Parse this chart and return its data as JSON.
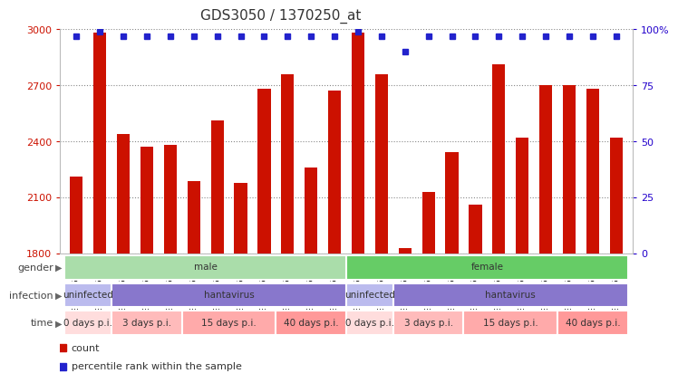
{
  "title": "GDS3050 / 1370250_at",
  "samples": [
    "GSM175452",
    "GSM175453",
    "GSM175454",
    "GSM175455",
    "GSM175456",
    "GSM175457",
    "GSM175458",
    "GSM175459",
    "GSM175460",
    "GSM175461",
    "GSM175462",
    "GSM175463",
    "GSM175440",
    "GSM175441",
    "GSM175442",
    "GSM175443",
    "GSM175444",
    "GSM175445",
    "GSM175446",
    "GSM175447",
    "GSM175448",
    "GSM175449",
    "GSM175450",
    "GSM175451"
  ],
  "counts": [
    2210,
    2980,
    2440,
    2370,
    2380,
    2185,
    2510,
    2175,
    2680,
    2760,
    2260,
    2670,
    2980,
    2760,
    1830,
    2130,
    2340,
    2060,
    2810,
    2420,
    2700,
    2700,
    2680,
    2420
  ],
  "percentile_ranks": [
    97,
    99,
    97,
    97,
    97,
    97,
    97,
    97,
    97,
    97,
    97,
    97,
    99,
    97,
    90,
    97,
    97,
    97,
    97,
    97,
    97,
    97,
    97,
    97
  ],
  "bar_color": "#cc1100",
  "dot_color": "#2222cc",
  "ylim_left": [
    1800,
    3000
  ],
  "yticks_left": [
    1800,
    2100,
    2400,
    2700,
    3000
  ],
  "ylim_right": [
    0,
    100
  ],
  "yticks_right": [
    0,
    25,
    50,
    75,
    100
  ],
  "grid_color": "#888888",
  "background_color": "#ffffff",
  "title_fontsize": 11,
  "annotation_rows": [
    {
      "label": "gender",
      "segments": [
        {
          "text": "male",
          "start": 0,
          "end": 12,
          "color": "#aaddaa"
        },
        {
          "text": "female",
          "start": 12,
          "end": 24,
          "color": "#66cc66"
        }
      ]
    },
    {
      "label": "infection",
      "segments": [
        {
          "text": "uninfected",
          "start": 0,
          "end": 2,
          "color": "#bbbbee"
        },
        {
          "text": "hantavirus",
          "start": 2,
          "end": 12,
          "color": "#8877cc"
        },
        {
          "text": "uninfected",
          "start": 12,
          "end": 14,
          "color": "#bbbbee"
        },
        {
          "text": "hantavirus",
          "start": 14,
          "end": 24,
          "color": "#8877cc"
        }
      ]
    },
    {
      "label": "time",
      "segments": [
        {
          "text": "0 days p.i.",
          "start": 0,
          "end": 2,
          "color": "#ffdddd"
        },
        {
          "text": "3 days p.i.",
          "start": 2,
          "end": 5,
          "color": "#ffbbbb"
        },
        {
          "text": "15 days p.i.",
          "start": 5,
          "end": 9,
          "color": "#ffaaaa"
        },
        {
          "text": "40 days p.i.",
          "start": 9,
          "end": 12,
          "color": "#ff9999"
        },
        {
          "text": "0 days p.i.",
          "start": 12,
          "end": 14,
          "color": "#ffdddd"
        },
        {
          "text": "3 days p.i.",
          "start": 14,
          "end": 17,
          "color": "#ffbbbb"
        },
        {
          "text": "15 days p.i.",
          "start": 17,
          "end": 21,
          "color": "#ffaaaa"
        },
        {
          "text": "40 days p.i.",
          "start": 21,
          "end": 24,
          "color": "#ff9999"
        }
      ]
    }
  ]
}
